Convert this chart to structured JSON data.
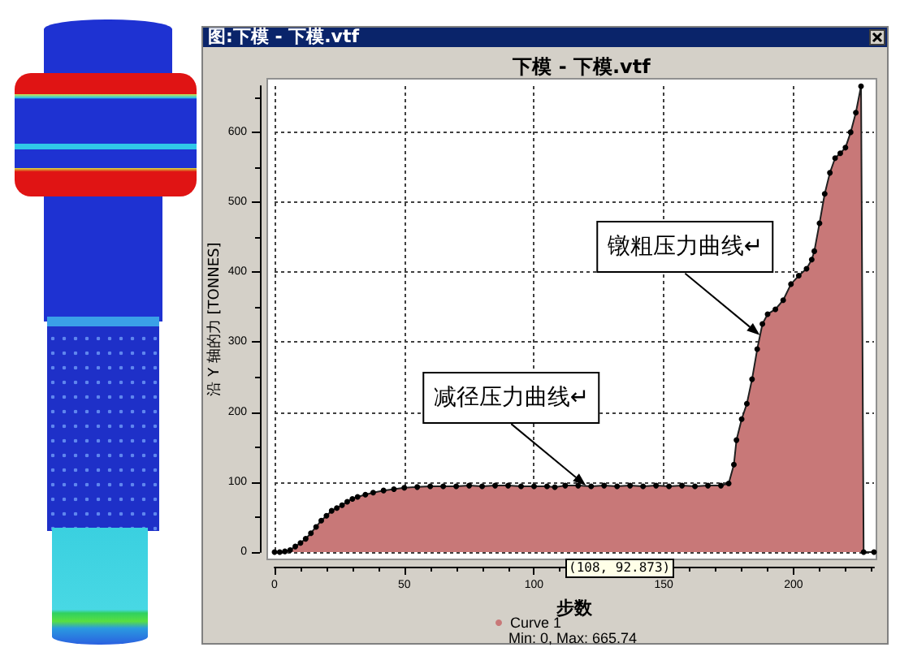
{
  "chart_data": {
    "type": "area",
    "title": "图:下模 - 下模.vtf",
    "subtitle": "下模 - 下模.vtf",
    "xlabel": "步数",
    "ylabel": "沿 Y 轴的力 [TONNES]",
    "x": [
      0,
      2,
      4,
      6,
      8,
      10,
      12,
      14,
      16,
      18,
      20,
      22,
      24,
      26,
      28,
      30,
      32,
      35,
      38,
      42,
      46,
      50,
      55,
      60,
      65,
      70,
      75,
      80,
      85,
      90,
      95,
      100,
      105,
      108,
      112,
      117,
      122,
      127,
      132,
      137,
      142,
      147,
      152,
      157,
      162,
      167,
      172,
      175,
      177,
      178,
      180,
      182,
      184,
      186,
      188,
      190,
      193,
      196,
      199,
      202,
      205,
      207,
      208,
      210,
      212,
      214,
      216,
      218,
      220,
      222,
      224,
      226,
      227,
      231
    ],
    "series": [
      {
        "name": "Curve 1",
        "color": "#c87878",
        "values": [
          0,
          0,
          1,
          3,
          8,
          13,
          19,
          27,
          36,
          45,
          52,
          59,
          63,
          67,
          72,
          76,
          79,
          82,
          85,
          88,
          90,
          92,
          93,
          94,
          94,
          94,
          95,
          94,
          95,
          95,
          94,
          94,
          94,
          92.873,
          95,
          95,
          94,
          95,
          94,
          95,
          94,
          95,
          94,
          95,
          94,
          95,
          95,
          98,
          125,
          160,
          190,
          212,
          247,
          290,
          326,
          340,
          347,
          360,
          383,
          395,
          405,
          418,
          430,
          470,
          512,
          542,
          563,
          570,
          578,
          600,
          628,
          665.74,
          0,
          0
        ]
      }
    ],
    "xlim": [
      0,
      231
    ],
    "ylim": [
      0,
      666
    ],
    "xticks": [
      0,
      {
        "value": 10,
        "label": null
      },
      {
        "value": 20,
        "label": null
      },
      {
        "value": 30,
        "label": null
      },
      {
        "value": 40,
        "label": null
      },
      50,
      {
        "value": 60,
        "label": null
      },
      {
        "value": 70,
        "label": null
      },
      {
        "value": 80,
        "label": null
      },
      {
        "value": 90,
        "label": null
      },
      100,
      {
        "value": 110,
        "label": null
      },
      {
        "value": 120,
        "label": null
      },
      {
        "value": 130,
        "label": null
      },
      {
        "value": 140,
        "label": null
      },
      150,
      {
        "value": 160,
        "label": null
      },
      {
        "value": 170,
        "label": null
      },
      {
        "value": 180,
        "label": null
      },
      {
        "value": 190,
        "label": null
      },
      200,
      {
        "value": 210,
        "label": null
      },
      {
        "value": 220,
        "label": null
      },
      {
        "value": 230,
        "label": null
      }
    ],
    "yticks": [
      0,
      {
        "value": 50,
        "label": null
      },
      100,
      {
        "value": 150,
        "label": null
      },
      200,
      {
        "value": 250,
        "label": null
      },
      300,
      {
        "value": 350,
        "label": null
      },
      400,
      {
        "value": 450,
        "label": null
      },
      500,
      {
        "value": 550,
        "label": null
      },
      600,
      {
        "value": 650,
        "label": null
      }
    ],
    "grid": true,
    "legend": "bottom",
    "marker": "circle",
    "annotations": [
      "Min: 0, Max: 665.74",
      "(108, 92.873)",
      {
        "text": "减径压力曲线↵",
        "x": 120,
        "y": 95
      },
      {
        "text": "镦粗压力曲线↵",
        "x": 187,
        "y": 310
      }
    ]
  }
}
